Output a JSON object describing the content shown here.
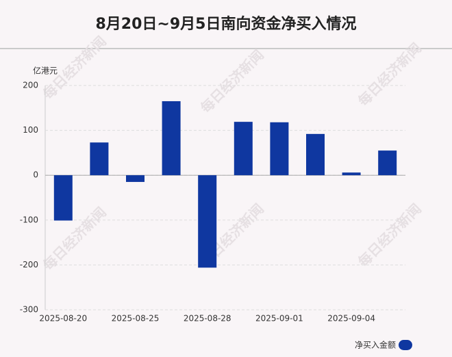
{
  "chart_data": {
    "type": "bar",
    "title": "8月20日~9月5日南向资金净买入情况",
    "y_axis_label": "亿港元",
    "watermark": "每日经济新闻",
    "categories": [
      "2025-08-20",
      null,
      "2025-08-25",
      null,
      "2025-08-28",
      null,
      "2025-09-01",
      null,
      "2025-09-04",
      null
    ],
    "series": [
      {
        "name": "净买入金额",
        "color": "#0f37a0",
        "values": [
          -101,
          73,
          -15,
          165,
          -206,
          119,
          118,
          92,
          6,
          55
        ]
      }
    ],
    "ylim": [
      -300,
      200
    ],
    "yticks": [
      -300,
      -200,
      -100,
      0,
      100,
      200
    ],
    "grid": true,
    "legend": "bottom-right"
  }
}
